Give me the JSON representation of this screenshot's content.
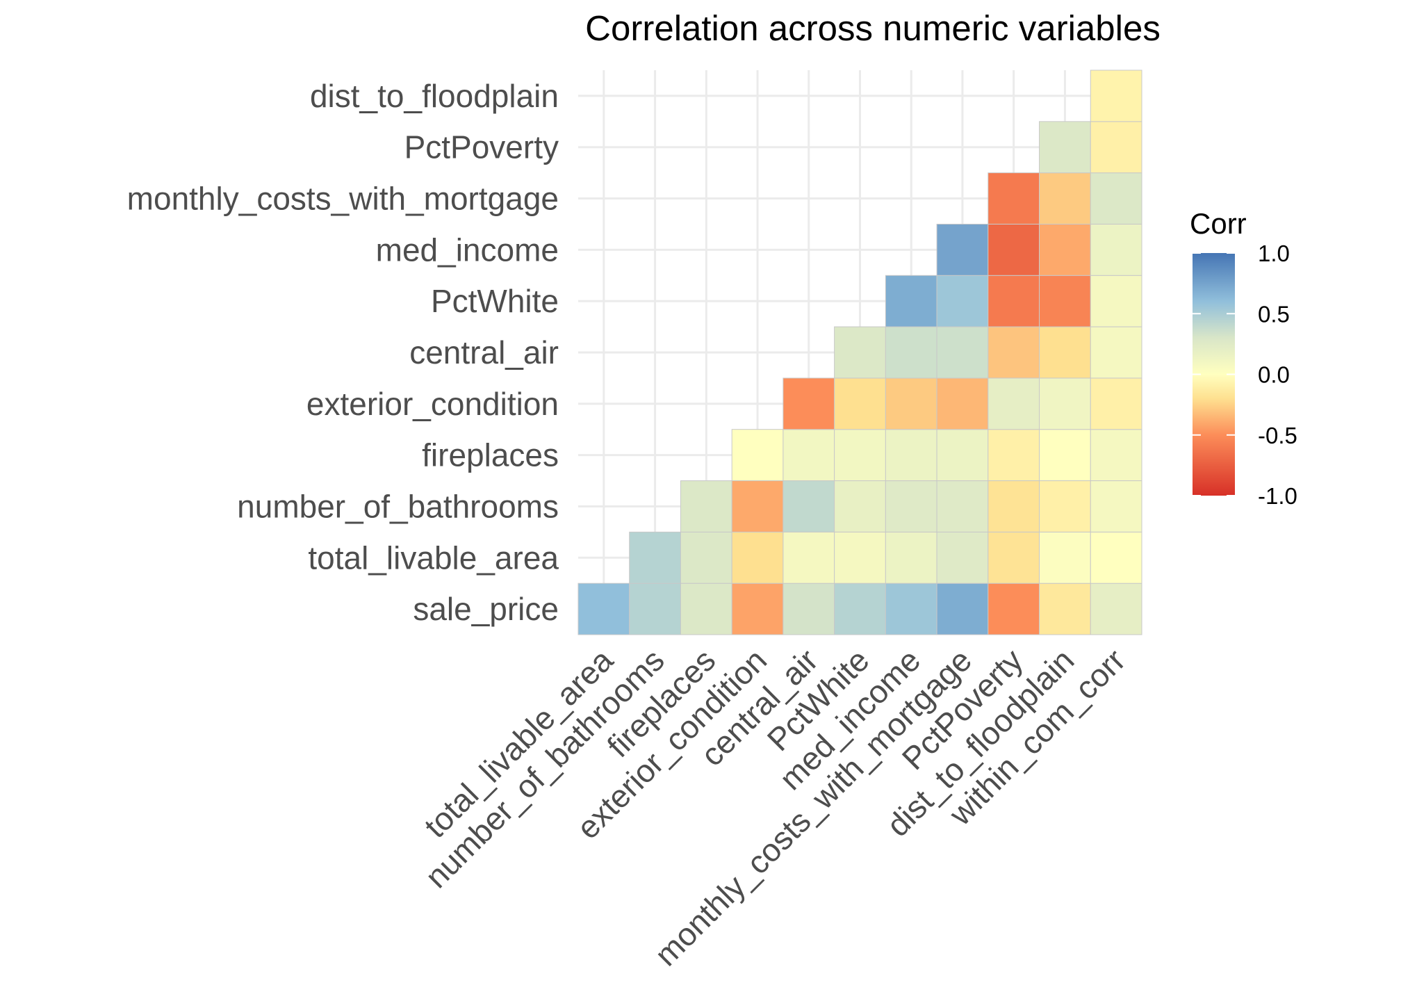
{
  "chart_data": {
    "type": "heatmap",
    "title": "Correlation across numeric variables",
    "x_categories": [
      "total_livable_area",
      "number_of_bathrooms",
      "fireplaces",
      "exterior_condition",
      "central_air",
      "PctWhite",
      "med_income",
      "monthly_costs_with_mortgage",
      "PctPoverty",
      "dist_to_floodplain",
      "within_com_corr"
    ],
    "y_categories": [
      "sale_price",
      "total_livable_area",
      "number_of_bathrooms",
      "fireplaces",
      "exterior_condition",
      "central_air",
      "PctWhite",
      "med_income",
      "monthly_costs_with_mortgage",
      "PctPoverty",
      "dist_to_floodplain"
    ],
    "values": [
      [
        0.6,
        0.45,
        0.28,
        -0.42,
        0.32,
        0.45,
        0.55,
        0.7,
        -0.5,
        -0.15,
        0.2
      ],
      [
        null,
        0.45,
        0.28,
        -0.2,
        0.08,
        0.08,
        0.15,
        0.25,
        -0.18,
        0.02,
        0.0
      ],
      [
        null,
        null,
        0.28,
        -0.4,
        0.4,
        0.18,
        0.25,
        0.25,
        -0.18,
        -0.1,
        0.08
      ],
      [
        null,
        null,
        null,
        0.0,
        0.1,
        0.1,
        0.15,
        0.15,
        -0.1,
        0.0,
        0.08
      ],
      [
        null,
        null,
        null,
        null,
        -0.5,
        -0.2,
        -0.28,
        -0.35,
        0.2,
        0.12,
        -0.1
      ],
      [
        null,
        null,
        null,
        null,
        null,
        0.28,
        0.35,
        0.35,
        -0.3,
        -0.2,
        0.08
      ],
      [
        null,
        null,
        null,
        null,
        null,
        null,
        0.7,
        0.55,
        -0.6,
        -0.55,
        0.08
      ],
      [
        null,
        null,
        null,
        null,
        null,
        null,
        null,
        0.75,
        -0.7,
        -0.4,
        0.15
      ],
      [
        null,
        null,
        null,
        null,
        null,
        null,
        null,
        null,
        -0.6,
        -0.28,
        0.28
      ],
      [
        null,
        null,
        null,
        null,
        null,
        null,
        null,
        null,
        null,
        0.28,
        -0.1
      ],
      [
        null,
        null,
        null,
        null,
        null,
        null,
        null,
        null,
        null,
        null,
        -0.08
      ]
    ],
    "legend": {
      "title": "Corr",
      "ticks": [
        "1.0",
        "0.5",
        "0.0",
        "-0.5",
        "-1.0"
      ],
      "tick_values": [
        1.0,
        0.5,
        0.0,
        -0.5,
        -1.0
      ],
      "placement": "right"
    },
    "colorscale": [
      "#d73027",
      "#fc8d59",
      "#fee090",
      "#ffffbf",
      "#e0f3f8",
      "#91bfdb",
      "#4575b4"
    ],
    "zlim": [
      -1,
      1
    ],
    "grid": true
  }
}
